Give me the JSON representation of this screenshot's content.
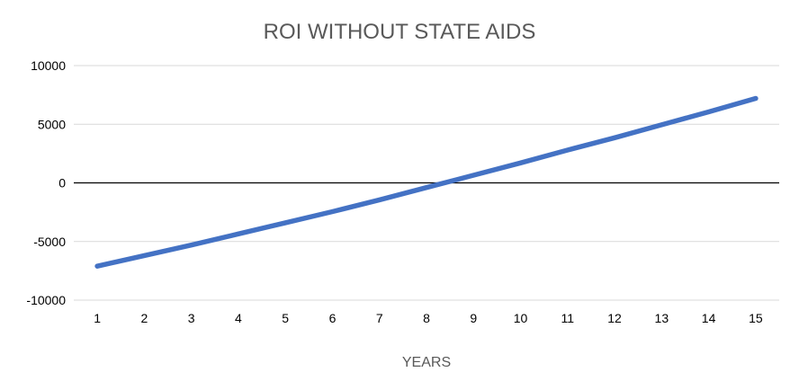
{
  "chart_data": {
    "type": "line",
    "title": "ROI WITHOUT STATE AIDS",
    "xlabel": "YEARS",
    "ylabel": "",
    "categories": [
      "1",
      "2",
      "3",
      "4",
      "5",
      "6",
      "7",
      "8",
      "9",
      "10",
      "11",
      "12",
      "13",
      "14",
      "15"
    ],
    "series": [
      {
        "values": [
          -7100,
          -6200,
          -5300,
          -4350,
          -3400,
          -2450,
          -1450,
          -400,
          650,
          1700,
          2800,
          3850,
          4950,
          6050,
          7200
        ],
        "color": "#4472c4"
      }
    ],
    "yticks": [
      10000,
      5000,
      0,
      -5000,
      -10000
    ],
    "ylim": [
      -10000,
      10000
    ],
    "grid": true,
    "legend": "none"
  }
}
